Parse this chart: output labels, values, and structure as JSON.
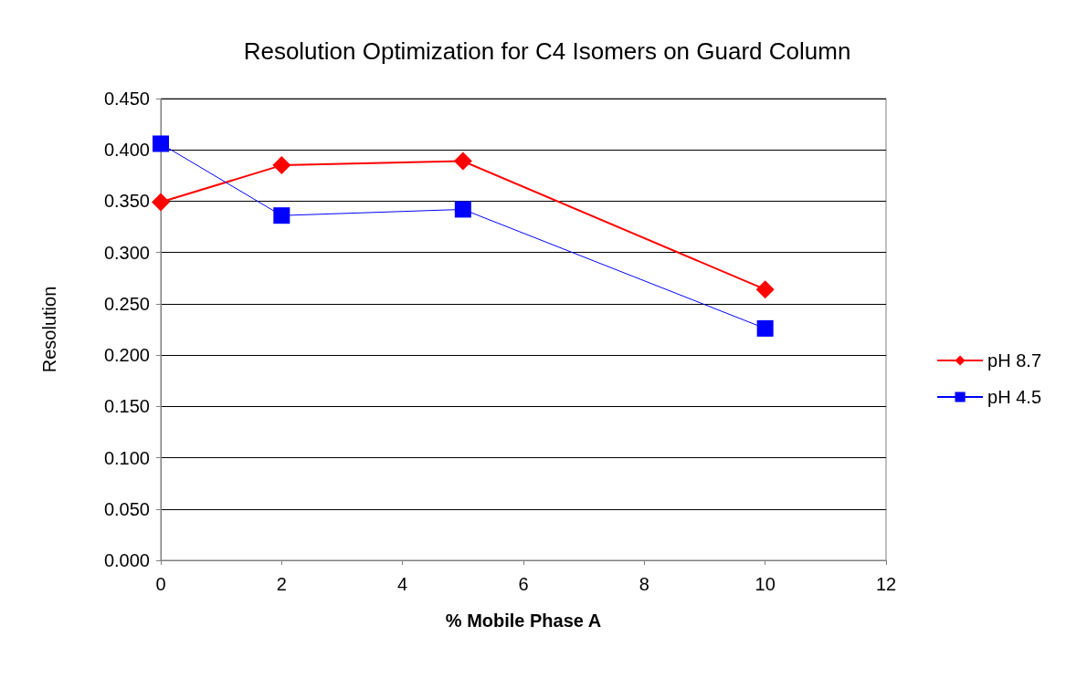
{
  "chart_data": {
    "type": "line",
    "title": "Resolution Optimization for C4 Isomers on Guard Column",
    "xlabel": "% Mobile Phase A",
    "ylabel": "Resolution",
    "x": [
      0,
      2,
      5,
      10
    ],
    "series": [
      {
        "name": "pH 8.7",
        "color": "#ff0000",
        "marker": "diamond",
        "values": [
          0.349,
          0.385,
          0.389,
          0.264
        ]
      },
      {
        "name": "pH 4.5",
        "color": "#0000ff",
        "marker": "square",
        "values": [
          0.406,
          0.336,
          0.342,
          0.226
        ]
      }
    ],
    "xlim": [
      0,
      12
    ],
    "xticks": [
      0,
      2,
      4,
      6,
      8,
      10,
      12
    ],
    "ylim": [
      0,
      0.45
    ],
    "yticks": [
      {
        "value": 0,
        "label": "0.000"
      },
      {
        "value": 0.05,
        "label": "0.050"
      },
      {
        "value": 0.1,
        "label": "0.100"
      },
      {
        "value": 0.15,
        "label": "0.150"
      },
      {
        "value": 0.2,
        "label": "0.200"
      },
      {
        "value": 0.25,
        "label": "0.250"
      },
      {
        "value": 0.3,
        "label": "0.300"
      },
      {
        "value": 0.35,
        "label": "0.350"
      },
      {
        "value": 0.4,
        "label": "0.400"
      },
      {
        "value": 0.45,
        "label": "0.450"
      }
    ],
    "grid": "y",
    "legend": "right"
  }
}
